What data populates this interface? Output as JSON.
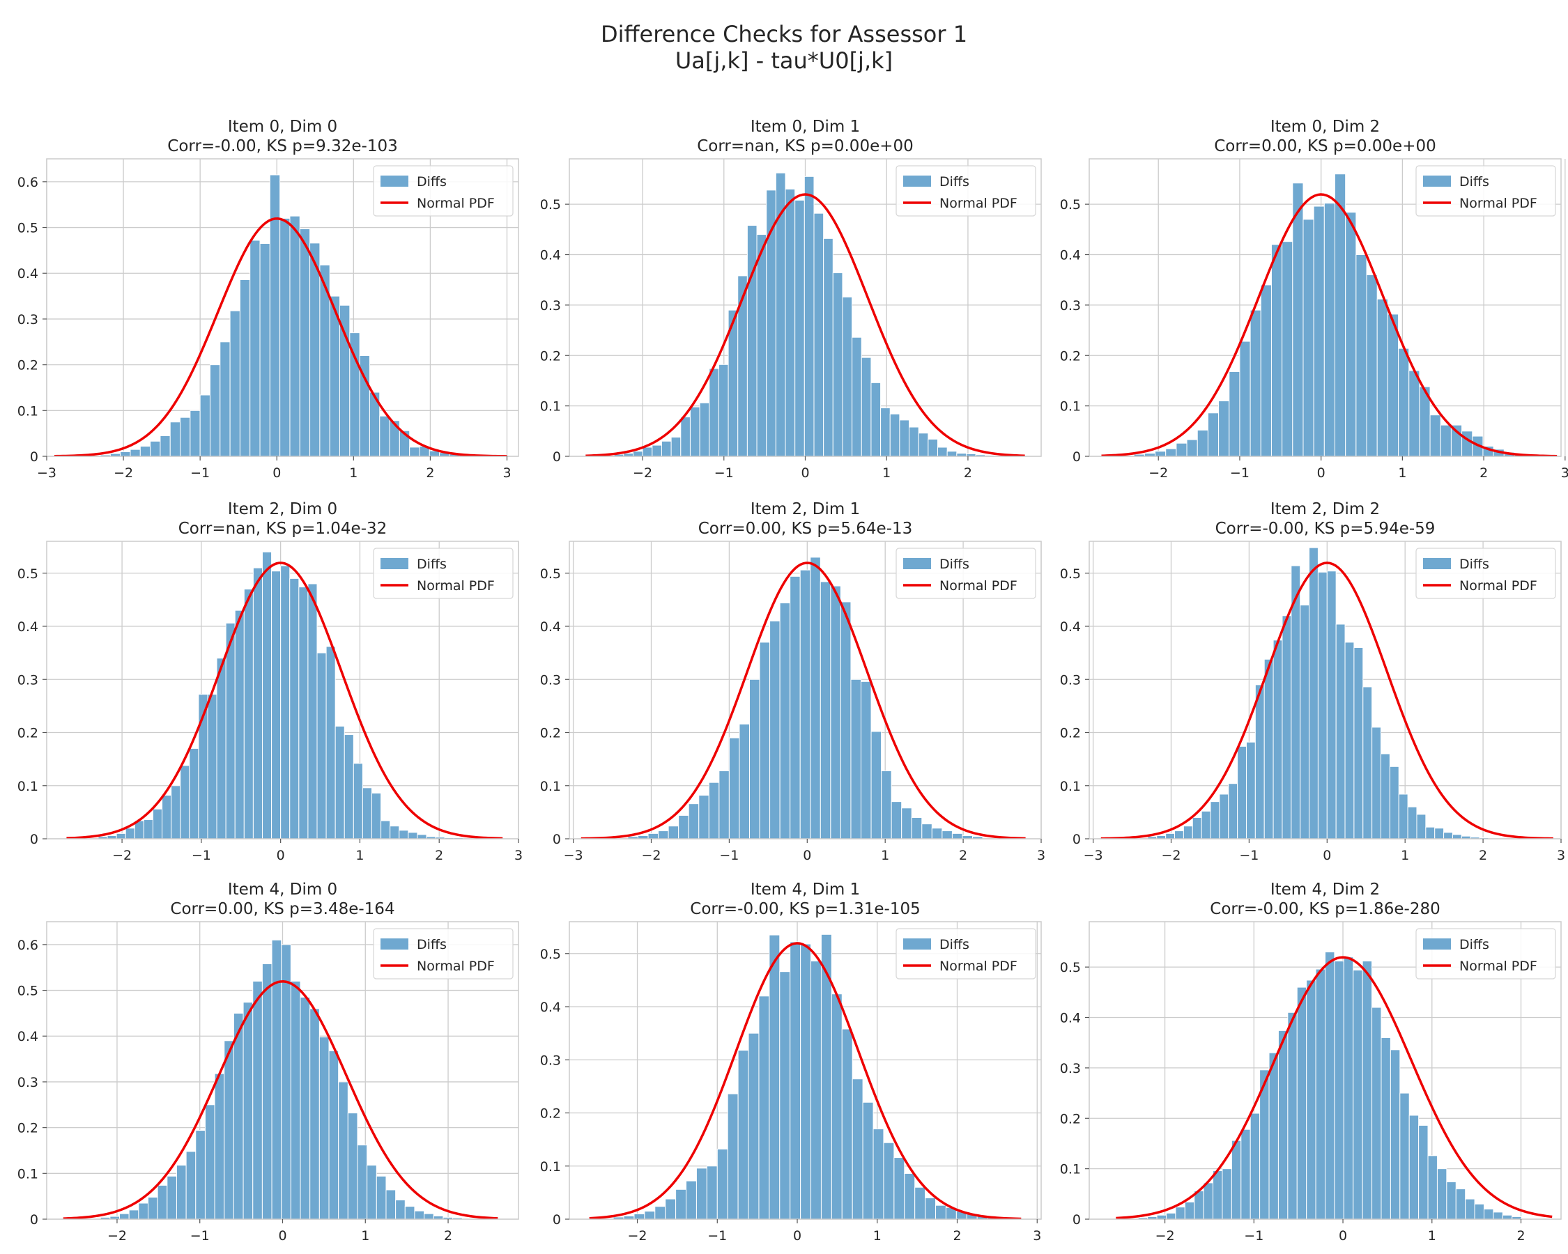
{
  "figure": {
    "title_line1": "Difference Checks for Assessor 1",
    "title_line2": "Ua[j,k] - tau*U0[j,k]"
  },
  "colors": {
    "bar": "#6fa8d0",
    "bar_edge": "#ffffff",
    "curve": "#ee0000",
    "grid": "#cccccc",
    "axes_edge": "#cccccc"
  },
  "chart_data": [
    {
      "type": "bar",
      "title": "Item 0, Dim 0",
      "subtitle": "Corr=-0.00, KS p=9.32e-103",
      "legend": [
        "Diffs",
        "Normal PDF"
      ],
      "legend_placement": "top-right",
      "grid": true,
      "xlim": [
        -3.0,
        3.15
      ],
      "ylim": [
        0,
        0.65
      ],
      "xticks": [
        -3,
        -2,
        -1,
        0,
        1,
        2,
        3
      ],
      "yticks": [
        0,
        0.1,
        0.2,
        0.3,
        0.4,
        0.5,
        0.6
      ],
      "bin_start": -2.3,
      "bin_width": 0.13,
      "values": [
        0.003,
        0.006,
        0.01,
        0.015,
        0.022,
        0.033,
        0.045,
        0.075,
        0.085,
        0.1,
        0.134,
        0.2,
        0.25,
        0.318,
        0.386,
        0.472,
        0.465,
        0.615,
        0.52,
        0.525,
        0.497,
        0.466,
        0.418,
        0.35,
        0.33,
        0.27,
        0.22,
        0.14,
        0.088,
        0.078,
        0.056,
        0.02,
        0.022,
        0.012,
        0.008,
        0.005,
        0.004,
        0.003
      ],
      "normal": {
        "mu": 0.0,
        "sigma": 0.768,
        "range": [
          -2.9,
          3.0
        ]
      }
    },
    {
      "type": "bar",
      "title": "Item 0, Dim 1",
      "subtitle": "Corr=nan, KS p=0.00e+00",
      "legend": [
        "Diffs",
        "Normal PDF"
      ],
      "legend_placement": "top-right",
      "grid": true,
      "xlim": [
        -2.9,
        2.9
      ],
      "ylim": [
        0,
        0.59
      ],
      "xticks": [
        -2,
        -1,
        0,
        1,
        2
      ],
      "yticks": [
        0,
        0.1,
        0.2,
        0.3,
        0.4,
        0.5
      ],
      "bin_start": -2.35,
      "bin_width": 0.117,
      "values": [
        0.004,
        0.006,
        0.01,
        0.018,
        0.022,
        0.03,
        0.038,
        0.078,
        0.098,
        0.106,
        0.174,
        0.182,
        0.29,
        0.358,
        0.458,
        0.44,
        0.528,
        0.562,
        0.53,
        0.508,
        0.555,
        0.482,
        0.432,
        0.364,
        0.316,
        0.236,
        0.196,
        0.146,
        0.096,
        0.084,
        0.072,
        0.058,
        0.046,
        0.034,
        0.018,
        0.01,
        0.006,
        0.005,
        0.003,
        0.002
      ],
      "normal": {
        "mu": 0.0,
        "sigma": 0.768,
        "range": [
          -2.7,
          2.7
        ]
      }
    },
    {
      "type": "bar",
      "title": "Item 0, Dim 2",
      "subtitle": "Corr=0.00, KS p=0.00e+00",
      "legend": [
        "Diffs",
        "Normal PDF"
      ],
      "legend_placement": "top-right",
      "grid": true,
      "xlim": [
        -2.85,
        2.95
      ],
      "ylim": [
        0,
        0.59
      ],
      "xticks": [
        -2,
        -1,
        0,
        1,
        2,
        3
      ],
      "yticks": [
        0,
        0.1,
        0.2,
        0.3,
        0.4,
        0.5
      ],
      "bin_start": -2.3,
      "bin_width": 0.13,
      "values": [
        0.004,
        0.006,
        0.01,
        0.015,
        0.026,
        0.033,
        0.052,
        0.086,
        0.11,
        0.168,
        0.228,
        0.29,
        0.34,
        0.42,
        0.426,
        0.542,
        0.47,
        0.496,
        0.502,
        0.56,
        0.484,
        0.4,
        0.36,
        0.312,
        0.282,
        0.214,
        0.17,
        0.138,
        0.082,
        0.062,
        0.062,
        0.05,
        0.04,
        0.02,
        0.014,
        0.008,
        0.005,
        0.003
      ],
      "normal": {
        "mu": 0.0,
        "sigma": 0.768,
        "range": [
          -2.7,
          2.9
        ]
      }
    },
    {
      "type": "bar",
      "title": "Item 2, Dim 0",
      "subtitle": "Corr=nan, KS p=1.04e-32",
      "legend": [
        "Diffs",
        "Normal PDF"
      ],
      "legend_placement": "top-right",
      "grid": true,
      "xlim": [
        -2.95,
        3.0
      ],
      "ylim": [
        0,
        0.56
      ],
      "xticks": [
        -2,
        -1,
        0,
        1,
        2,
        3
      ],
      "yticks": [
        0,
        0.1,
        0.2,
        0.3,
        0.4,
        0.5
      ],
      "bin_start": -2.3,
      "bin_width": 0.115,
      "values": [
        0.004,
        0.006,
        0.01,
        0.02,
        0.034,
        0.036,
        0.056,
        0.082,
        0.1,
        0.138,
        0.17,
        0.272,
        0.272,
        0.34,
        0.406,
        0.43,
        0.47,
        0.51,
        0.54,
        0.504,
        0.514,
        0.49,
        0.474,
        0.48,
        0.35,
        0.362,
        0.212,
        0.196,
        0.142,
        0.096,
        0.086,
        0.034,
        0.024,
        0.016,
        0.012,
        0.008,
        0.004,
        0.003,
        0.002,
        0.002
      ],
      "normal": {
        "mu": 0.0,
        "sigma": 0.768,
        "range": [
          -2.7,
          2.8
        ]
      }
    },
    {
      "type": "bar",
      "title": "Item 2, Dim 1",
      "subtitle": "Corr=0.00, KS p=5.64e-13",
      "legend": [
        "Diffs",
        "Normal PDF"
      ],
      "legend_placement": "top-right",
      "grid": true,
      "xlim": [
        -3.05,
        3.0
      ],
      "ylim": [
        0,
        0.56
      ],
      "xticks": [
        -3,
        -2,
        -1,
        0,
        1,
        2,
        3
      ],
      "yticks": [
        0,
        0.1,
        0.2,
        0.3,
        0.4,
        0.5
      ],
      "bin_start": -2.3,
      "bin_width": 0.13,
      "values": [
        0.004,
        0.006,
        0.01,
        0.015,
        0.024,
        0.044,
        0.066,
        0.082,
        0.106,
        0.128,
        0.19,
        0.216,
        0.3,
        0.37,
        0.41,
        0.444,
        0.494,
        0.506,
        0.53,
        0.484,
        0.476,
        0.446,
        0.3,
        0.296,
        0.202,
        0.128,
        0.07,
        0.058,
        0.04,
        0.028,
        0.02,
        0.015,
        0.01,
        0.006,
        0.004
      ],
      "normal": {
        "mu": 0.0,
        "sigma": 0.768,
        "range": [
          -2.9,
          2.8
        ]
      }
    },
    {
      "type": "bar",
      "title": "Item 2, Dim 2",
      "subtitle": "Corr=-0.00, KS p=5.94e-59",
      "legend": [
        "Diffs",
        "Normal PDF"
      ],
      "legend_placement": "top-right",
      "grid": true,
      "xlim": [
        -3.05,
        3.0
      ],
      "ylim": [
        0,
        0.56
      ],
      "xticks": [
        -3,
        -2,
        -1,
        0,
        1,
        2,
        3
      ],
      "yticks": [
        0,
        0.1,
        0.2,
        0.3,
        0.4,
        0.5
      ],
      "bin_start": -2.3,
      "bin_width": 0.115,
      "values": [
        0.004,
        0.006,
        0.01,
        0.015,
        0.024,
        0.04,
        0.052,
        0.07,
        0.084,
        0.104,
        0.174,
        0.182,
        0.29,
        0.338,
        0.374,
        0.42,
        0.514,
        0.44,
        0.548,
        0.502,
        0.504,
        0.404,
        0.37,
        0.36,
        0.286,
        0.21,
        0.16,
        0.136,
        0.084,
        0.06,
        0.046,
        0.022,
        0.02,
        0.012,
        0.008,
        0.005,
        0.003,
        0.002
      ],
      "normal": {
        "mu": 0.0,
        "sigma": 0.768,
        "range": [
          -2.9,
          2.9
        ]
      }
    },
    {
      "type": "bar",
      "title": "Item 4, Dim 0",
      "subtitle": "Corr=0.00, KS p=3.48e-164",
      "legend": [
        "Diffs",
        "Normal PDF"
      ],
      "legend_placement": "top-right",
      "grid": true,
      "xlim": [
        -2.85,
        2.85
      ],
      "ylim": [
        0,
        0.65
      ],
      "xticks": [
        -2,
        -1,
        0,
        1,
        2
      ],
      "yticks": [
        0,
        0.1,
        0.2,
        0.3,
        0.4,
        0.5,
        0.6
      ],
      "bin_start": -2.2,
      "bin_width": 0.115,
      "values": [
        0.004,
        0.006,
        0.012,
        0.02,
        0.035,
        0.048,
        0.074,
        0.094,
        0.118,
        0.148,
        0.194,
        0.25,
        0.318,
        0.39,
        0.45,
        0.474,
        0.52,
        0.558,
        0.61,
        0.6,
        0.52,
        0.485,
        0.46,
        0.398,
        0.368,
        0.3,
        0.232,
        0.162,
        0.118,
        0.094,
        0.064,
        0.042,
        0.028,
        0.018,
        0.012,
        0.007,
        0.004,
        0.003
      ],
      "normal": {
        "mu": 0.0,
        "sigma": 0.768,
        "range": [
          -2.65,
          2.6
        ]
      }
    },
    {
      "type": "bar",
      "title": "Item 4, Dim 1",
      "subtitle": "Corr=-0.00, KS p=1.31e-105",
      "legend": [
        "Diffs",
        "Normal PDF"
      ],
      "legend_placement": "top-right",
      "grid": true,
      "xlim": [
        -2.85,
        3.05
      ],
      "ylim": [
        0,
        0.56
      ],
      "xticks": [
        -2,
        -1,
        0,
        1,
        2,
        3
      ],
      "yticks": [
        0,
        0.1,
        0.2,
        0.3,
        0.4,
        0.5
      ],
      "bin_start": -2.3,
      "bin_width": 0.13,
      "values": [
        0.004,
        0.006,
        0.01,
        0.015,
        0.024,
        0.038,
        0.056,
        0.072,
        0.096,
        0.1,
        0.132,
        0.236,
        0.318,
        0.35,
        0.42,
        0.535,
        0.466,
        0.522,
        0.518,
        0.486,
        0.536,
        0.424,
        0.358,
        0.264,
        0.22,
        0.17,
        0.144,
        0.116,
        0.086,
        0.06,
        0.04,
        0.026,
        0.022,
        0.015,
        0.01,
        0.006,
        0.004,
        0.003
      ],
      "normal": {
        "mu": 0.0,
        "sigma": 0.768,
        "range": [
          -2.6,
          2.8
        ]
      }
    },
    {
      "type": "bar",
      "title": "Item 4, Dim 2",
      "subtitle": "Corr=-0.00, KS p=1.86e-280",
      "legend": [
        "Diffs",
        "Normal PDF"
      ],
      "legend_placement": "top-right",
      "grid": true,
      "xlim": [
        -2.85,
        2.45
      ],
      "ylim": [
        0,
        0.59
      ],
      "xticks": [
        -2,
        -1,
        0,
        1,
        2
      ],
      "yticks": [
        0,
        0.1,
        0.2,
        0.3,
        0.4,
        0.5
      ],
      "bin_start": -2.3,
      "bin_width": 0.105,
      "values": [
        0.003,
        0.005,
        0.008,
        0.012,
        0.024,
        0.034,
        0.056,
        0.072,
        0.096,
        0.1,
        0.156,
        0.178,
        0.21,
        0.296,
        0.33,
        0.374,
        0.41,
        0.46,
        0.474,
        0.496,
        0.53,
        0.512,
        0.52,
        0.494,
        0.512,
        0.42,
        0.36,
        0.336,
        0.25,
        0.206,
        0.186,
        0.126,
        0.1,
        0.074,
        0.06,
        0.04,
        0.03,
        0.02,
        0.014,
        0.008,
        0.005
      ],
      "normal": {
        "mu": 0.0,
        "sigma": 0.768,
        "range": [
          -2.55,
          2.35
        ]
      }
    }
  ]
}
